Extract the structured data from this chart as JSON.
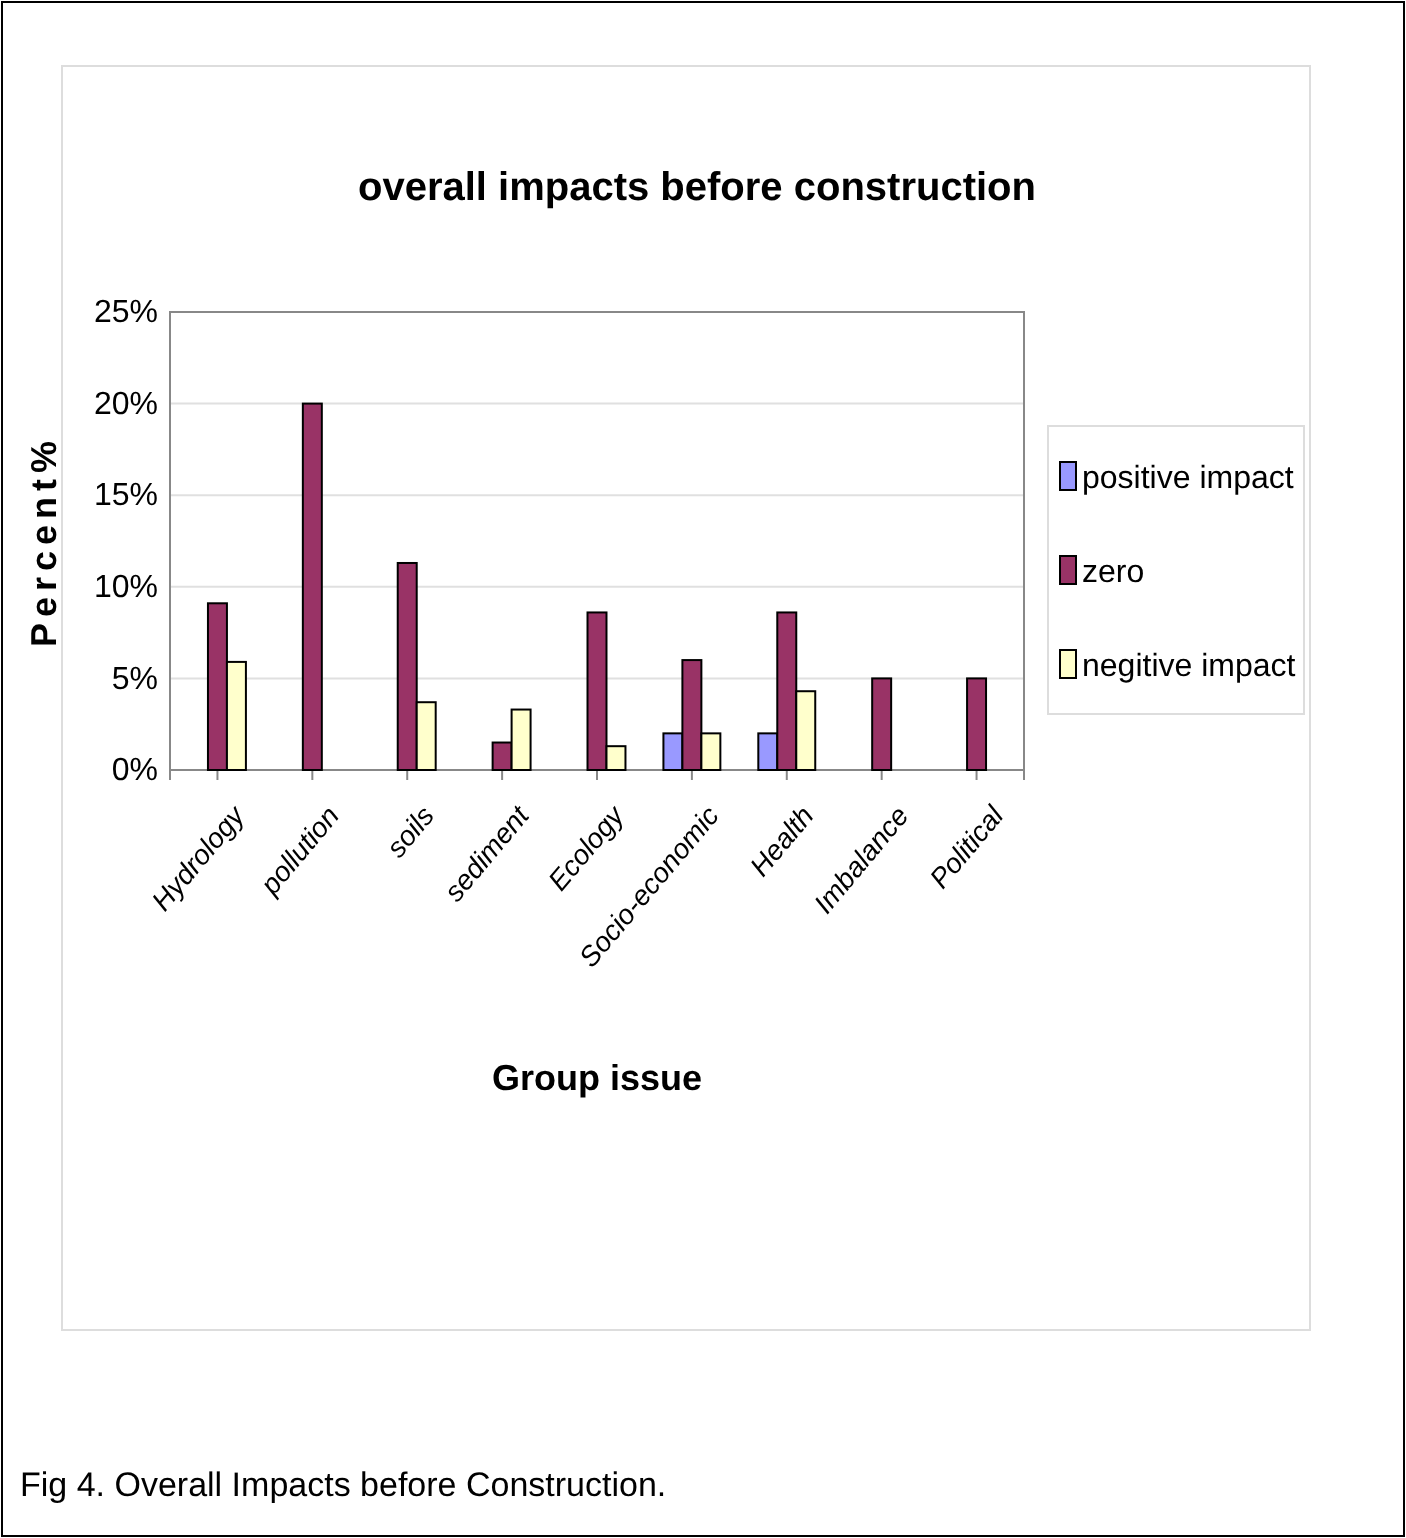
{
  "chart_data": {
    "type": "bar",
    "title": "overall impacts before construction",
    "xlabel": "Group issue",
    "ylabel": "Percent%",
    "categories": [
      "Hydrology",
      "pollution",
      "soils",
      "sediment",
      "Ecology",
      "Socio-economic",
      "Health",
      "Imbalance",
      "Political"
    ],
    "series": [
      {
        "name": "positive impact",
        "color": "#9999ff",
        "values": [
          0,
          0,
          0,
          0,
          0,
          2,
          2,
          0,
          0
        ]
      },
      {
        "name": "zero",
        "color": "#993366",
        "values": [
          9.1,
          20,
          11.3,
          1.5,
          8.6,
          6,
          8.6,
          5,
          5
        ]
      },
      {
        "name": "negitive impact",
        "color": "#ffffcc",
        "values": [
          5.9,
          0,
          3.7,
          3.3,
          1.3,
          2,
          4.3,
          0,
          0
        ]
      }
    ],
    "ylim": [
      0,
      25
    ],
    "yticks": [
      {
        "value": 0,
        "label": "0%"
      },
      {
        "value": 5,
        "label": "5%"
      },
      {
        "value": 10,
        "label": "10%"
      },
      {
        "value": 15,
        "label": "15%"
      },
      {
        "value": 20,
        "label": "20%"
      },
      {
        "value": 25,
        "label": "25%"
      }
    ],
    "grid": "y",
    "legend": "right",
    "annotations": [
      "Fig 4. Overall Impacts before Construction."
    ]
  }
}
